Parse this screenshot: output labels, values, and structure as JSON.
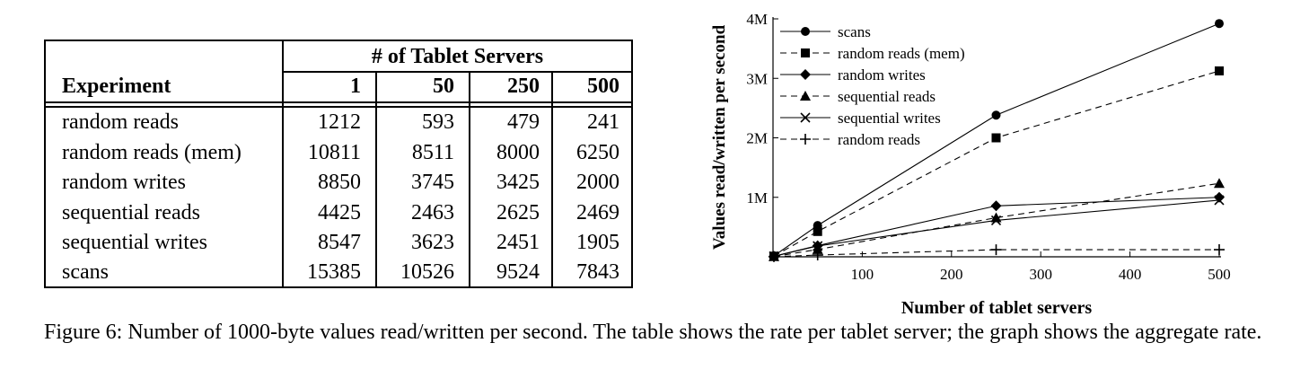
{
  "table": {
    "group_header": "# of Tablet Servers",
    "experiment_header": "Experiment",
    "columns": [
      "1",
      "50",
      "250",
      "500"
    ],
    "rows": [
      {
        "label": "random reads",
        "values": [
          "1212",
          "593",
          "479",
          "241"
        ]
      },
      {
        "label": "random reads (mem)",
        "values": [
          "10811",
          "8511",
          "8000",
          "6250"
        ]
      },
      {
        "label": "random writes",
        "values": [
          "8850",
          "3745",
          "3425",
          "2000"
        ]
      },
      {
        "label": "sequential reads",
        "values": [
          "4425",
          "2463",
          "2625",
          "2469"
        ]
      },
      {
        "label": "sequential writes",
        "values": [
          "8547",
          "3623",
          "2451",
          "1905"
        ]
      },
      {
        "label": "scans",
        "values": [
          "15385",
          "10526",
          "9524",
          "7843"
        ]
      }
    ]
  },
  "chart_data": {
    "type": "line",
    "title": "",
    "xlabel": "Number of tablet servers",
    "ylabel": "Values read/written per second",
    "xlim": [
      0,
      500
    ],
    "ylim": [
      0,
      4000000
    ],
    "x_ticks": [
      100,
      200,
      300,
      400,
      500
    ],
    "x_tick_labels": [
      "100",
      "200",
      "300",
      "400",
      "500"
    ],
    "y_ticks": [
      1000000,
      2000000,
      3000000,
      4000000
    ],
    "y_tick_labels": [
      "1M",
      "2M",
      "3M",
      "4M"
    ],
    "legend_position": "top-left",
    "grid": false,
    "x": [
      1,
      50,
      250,
      500
    ],
    "series": [
      {
        "name": "scans",
        "marker": "circle",
        "dashed": false,
        "values": [
          15385,
          526300,
          2381000,
          3921500
        ]
      },
      {
        "name": "random reads (mem)",
        "marker": "square",
        "dashed": true,
        "values": [
          10811,
          425550,
          2000000,
          3125000
        ]
      },
      {
        "name": "random writes",
        "marker": "diamond",
        "dashed": false,
        "values": [
          8850,
          187250,
          856250,
          1000000
        ]
      },
      {
        "name": "sequential reads",
        "marker": "triangle",
        "dashed": true,
        "values": [
          4425,
          123150,
          656250,
          1234500
        ]
      },
      {
        "name": "sequential writes",
        "marker": "x",
        "dashed": false,
        "values": [
          8547,
          181150,
          612750,
          952500
        ]
      },
      {
        "name": "random reads",
        "marker": "plus",
        "dashed": true,
        "values": [
          1212,
          29650,
          119750,
          120500
        ]
      }
    ]
  },
  "caption": {
    "text": "Figure 6: Number of 1000-byte values read/written per second. The table shows the rate per tablet server; the graph shows the aggregate rate."
  }
}
